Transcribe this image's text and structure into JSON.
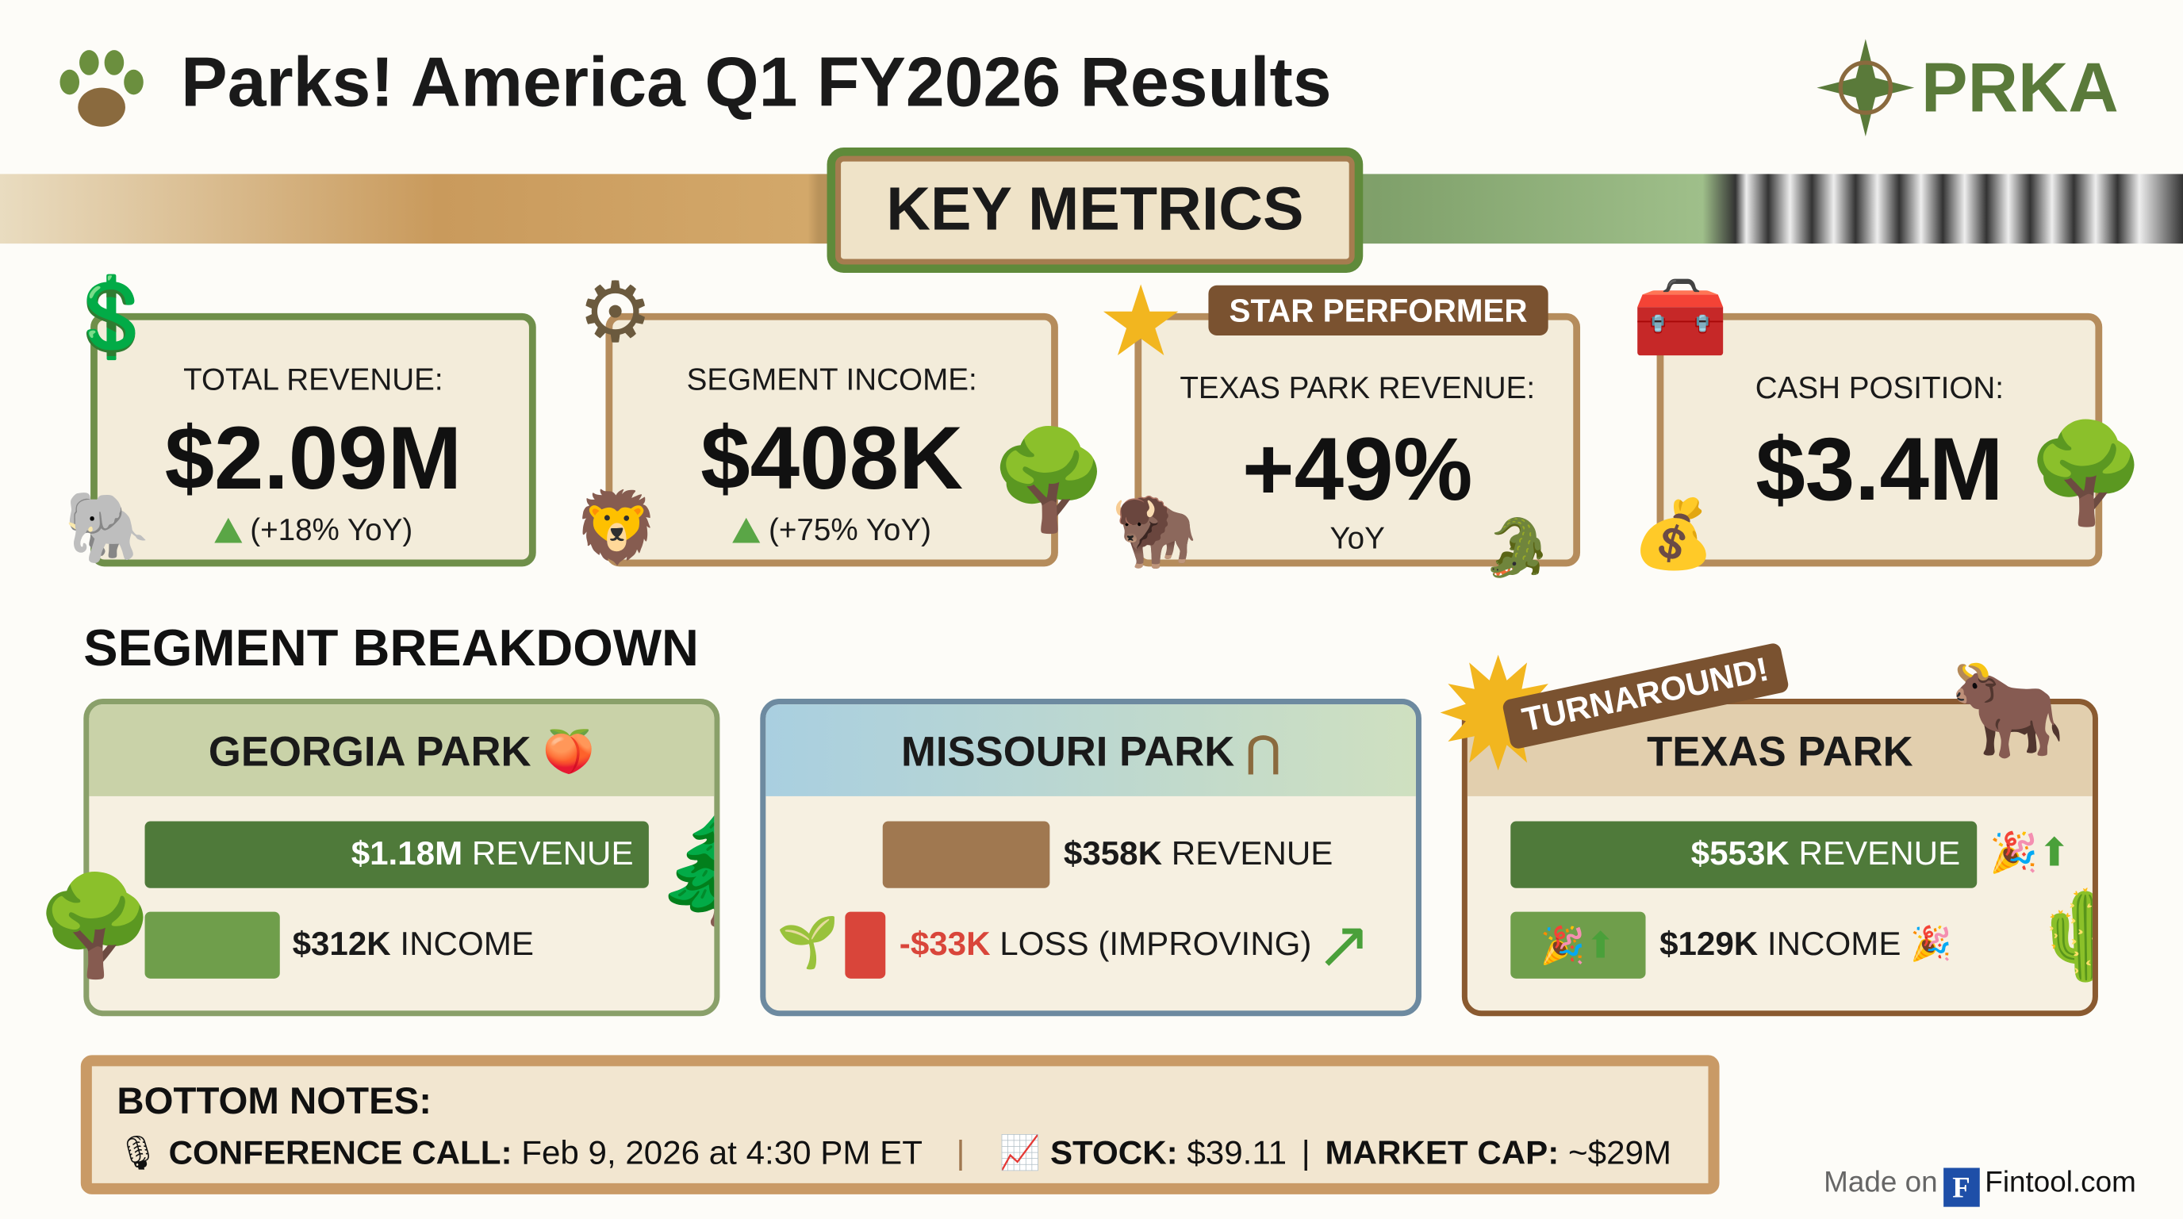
{
  "header": {
    "title": "Parks! America Q1 FY2026 Results",
    "logo_text": "PRKA",
    "paw_icon": "paw-icon",
    "compass_icon": "compass-icon"
  },
  "banner": {
    "label": "KEY METRICS"
  },
  "metrics": [
    {
      "label": "TOTAL REVENUE:",
      "value": "$2.09M",
      "change": "(+18% YoY)",
      "icon": "money-globe-icon",
      "animal": "elephant"
    },
    {
      "label": "SEGMENT INCOME:",
      "value": "$408K",
      "change": "(+75% YoY)",
      "icon": "gear-icon",
      "animal": "lion"
    },
    {
      "label": "TEXAS PARK REVENUE:",
      "value": "+49%",
      "change": "YoY",
      "badge": "STAR PERFORMER",
      "icon": "star-icon",
      "animal": "bison"
    },
    {
      "label": "CASH POSITION:",
      "value": "$3.4M",
      "icon": "treasure-chest-icon",
      "animal": "baobab-tree"
    }
  ],
  "segments": {
    "title": "SEGMENT BREAKDOWN",
    "parks": [
      {
        "name": "GEORGIA PARK",
        "revenue_value": "$1.18M",
        "revenue_label": "REVENUE",
        "income_value": "$312K",
        "income_label": "INCOME",
        "icon": "peach-icon"
      },
      {
        "name": "MISSOURI PARK",
        "revenue_value": "$358K",
        "revenue_label": "REVENUE",
        "income_value": "-$33K",
        "income_label": "LOSS (IMPROVING)",
        "icon": "arch-icon"
      },
      {
        "name": "TEXAS PARK",
        "revenue_value": "$553K",
        "revenue_label": "REVENUE",
        "income_value": "$129K",
        "income_label": "INCOME",
        "badge": "TURNAROUND!",
        "icon": "longhorn-icon"
      }
    ]
  },
  "notes": {
    "title": "BOTTOM NOTES:",
    "call_label": "CONFERENCE CALL:",
    "call_value": "Feb 9, 2026 at 4:30 PM ET",
    "stock_label": "STOCK:",
    "stock_value": "$39.11",
    "cap_label": "MARKET CAP:",
    "cap_value": "~$29M"
  },
  "footer": {
    "made_on": "Made on",
    "brand_letter": "F",
    "brand": "Fintool.com"
  },
  "colors": {
    "dark_green": "#4f7a3a",
    "light_green": "#6f9e4b",
    "brown": "#a07850",
    "loss_red": "#d9453a",
    "card_border": "#b58c5c"
  }
}
